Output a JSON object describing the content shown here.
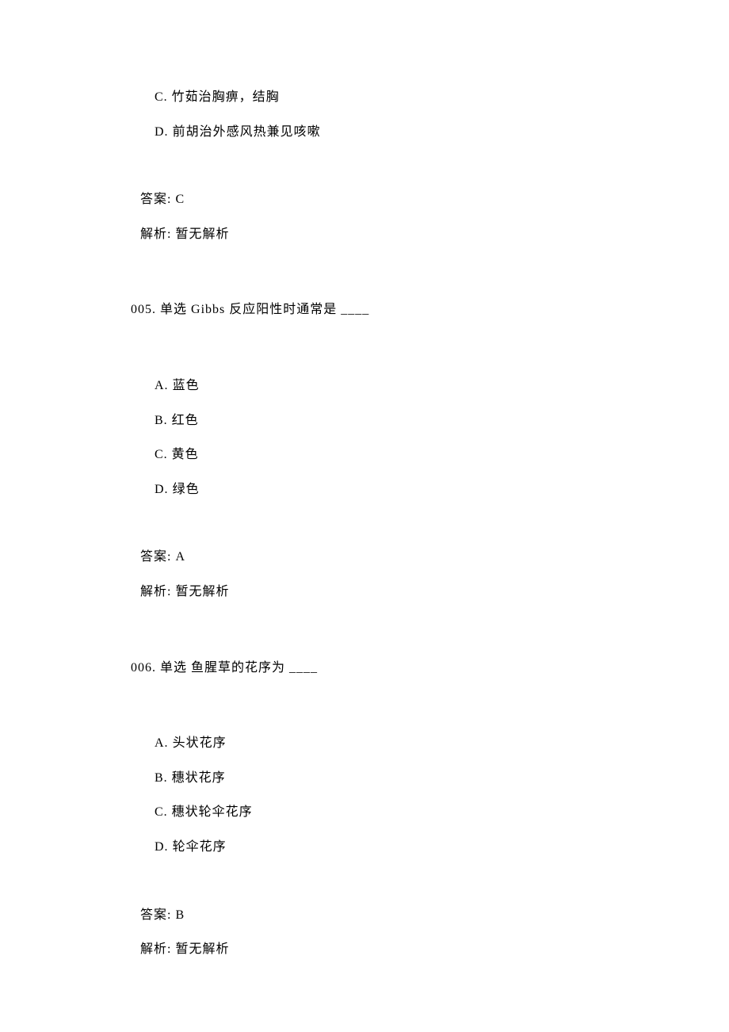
{
  "q004_partial": {
    "options": [
      {
        "label": "C.",
        "text": "竹茹治胸痹，结胸"
      },
      {
        "label": "D.",
        "text": "前胡治外感风热兼见咳嗽"
      }
    ],
    "answer_label": "答案:",
    "answer_value": "C",
    "analysis_label": "解析:",
    "analysis_value": "暂无解析"
  },
  "q005": {
    "number": "005.",
    "type": "单选",
    "stem": "Gibbs 反应阳性时通常是",
    "blank": "____",
    "options": [
      {
        "label": "A.",
        "text": "蓝色"
      },
      {
        "label": "B.",
        "text": "红色"
      },
      {
        "label": "C.",
        "text": "黄色"
      },
      {
        "label": "D.",
        "text": "绿色"
      }
    ],
    "answer_label": "答案:",
    "answer_value": "A",
    "analysis_label": "解析:",
    "analysis_value": "暂无解析"
  },
  "q006": {
    "number": "006.",
    "type": "单选",
    "stem": "鱼腥草的花序为",
    "blank": "____",
    "options": [
      {
        "label": "A.",
        "text": "头状花序"
      },
      {
        "label": "B.",
        "text": "穗状花序"
      },
      {
        "label": "C.",
        "text": "穗状轮伞花序"
      },
      {
        "label": "D.",
        "text": "轮伞花序"
      }
    ],
    "answer_label": "答案:",
    "answer_value": "B",
    "analysis_label": "解析:",
    "analysis_value": "暂无解析"
  }
}
